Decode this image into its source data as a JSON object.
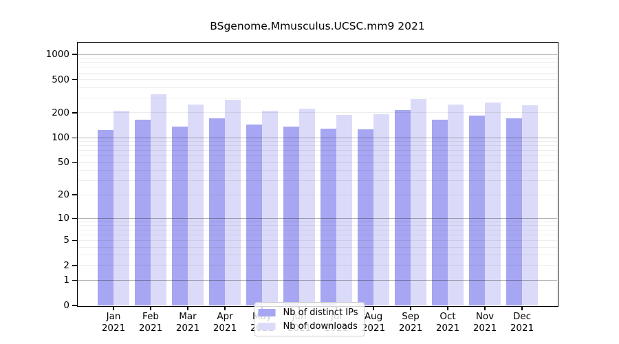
{
  "title": "BSgenome.Mmusculus.UCSC.mm9 2021",
  "chart_data": {
    "type": "bar",
    "categories": [
      "Jan 2021",
      "Feb 2021",
      "Mar 2021",
      "Apr 2021",
      "May 2021",
      "Jun 2021",
      "Jul 2021",
      "Aug 2021",
      "Sep 2021",
      "Oct 2021",
      "Nov 2021",
      "Dec 2021"
    ],
    "series": [
      {
        "name": "Nb of distinct IPs",
        "color": "#a6a6f2",
        "values": [
          123,
          166,
          136,
          171,
          145,
          137,
          129,
          126,
          214,
          164,
          184,
          171
        ]
      },
      {
        "name": "Nb of downloads",
        "color": "#dbdbf9",
        "values": [
          210,
          334,
          252,
          285,
          213,
          226,
          189,
          192,
          292,
          250,
          267,
          245
        ]
      }
    ],
    "yscale": "log1p",
    "ylim": [
      0,
      1385
    ],
    "yticks": [
      0,
      1,
      2,
      5,
      10,
      20,
      50,
      100,
      200,
      500,
      1000
    ],
    "major_gridlines": [
      1,
      10,
      100,
      1000
    ],
    "grid": "both, drawn over bars",
    "legend_position": "lower center inside plot",
    "xlabel": "",
    "ylabel": ""
  }
}
